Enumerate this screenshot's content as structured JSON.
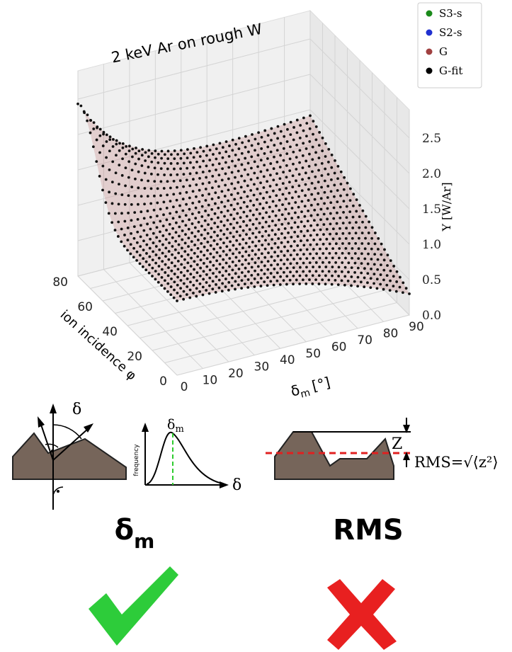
{
  "figure": {
    "title": "2 keV Ar on rough W",
    "legend": [
      {
        "label": "S3-s",
        "color": "#1a8a1a"
      },
      {
        "label": "S2-s",
        "color": "#2030d0"
      },
      {
        "label": "G",
        "color": "#a04040"
      },
      {
        "label": "G-fit",
        "color": "#000000"
      }
    ],
    "z_axis": {
      "label": "Y [W/Ar]",
      "ticks": [
        "0.0",
        "0.5",
        "1.0",
        "1.5",
        "2.0",
        "2.5"
      ]
    },
    "delta_axis": {
      "symbol": "δ",
      "subscript": "m",
      "unit": "[°]",
      "ticks": [
        "0",
        "10",
        "20",
        "30",
        "40",
        "50",
        "60",
        "70",
        "80",
        "90"
      ]
    },
    "phi_axis": {
      "label": "ion incidence φ",
      "ticks": [
        "0",
        "20",
        "40",
        "60",
        "80"
      ]
    }
  },
  "diagrams": {
    "angle": {
      "symbol": "δ"
    },
    "distribution": {
      "peak_symbol": "δ",
      "peak_subscript": "m",
      "y_label": "frequency",
      "x_label": "δ"
    },
    "roughness": {
      "height": "Z",
      "formula": "RMS=√⟨z²⟩"
    }
  },
  "verdicts": [
    {
      "symbol": "δ",
      "subscript": "m"
    },
    {
      "label": "RMS"
    }
  ]
}
